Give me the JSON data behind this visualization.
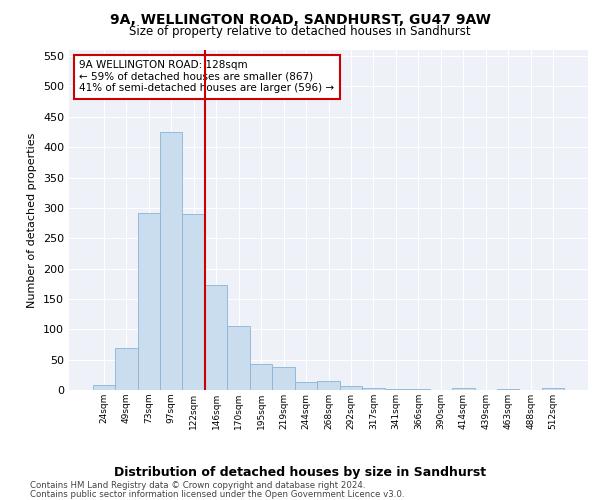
{
  "title1": "9A, WELLINGTON ROAD, SANDHURST, GU47 9AW",
  "title2": "Size of property relative to detached houses in Sandhurst",
  "xlabel": "Distribution of detached houses by size in Sandhurst",
  "ylabel": "Number of detached properties",
  "categories": [
    "24sqm",
    "49sqm",
    "73sqm",
    "97sqm",
    "122sqm",
    "146sqm",
    "170sqm",
    "195sqm",
    "219sqm",
    "244sqm",
    "268sqm",
    "292sqm",
    "317sqm",
    "341sqm",
    "366sqm",
    "390sqm",
    "414sqm",
    "439sqm",
    "463sqm",
    "488sqm",
    "512sqm"
  ],
  "values": [
    8,
    70,
    292,
    425,
    290,
    173,
    105,
    43,
    38,
    14,
    15,
    7,
    4,
    2,
    2,
    0,
    4,
    0,
    2,
    0,
    3
  ],
  "bar_color": "#c9ddef",
  "bar_edge_color": "#8ab4d4",
  "vline_x": 4.5,
  "vline_color": "#cc0000",
  "annotation_line1": "9A WELLINGTON ROAD: 128sqm",
  "annotation_line2": "← 59% of detached houses are smaller (867)",
  "annotation_line3": "41% of semi-detached houses are larger (596) →",
  "annotation_box_color": "#ffffff",
  "annotation_box_edge": "#cc0000",
  "ylim": [
    0,
    560
  ],
  "yticks": [
    0,
    50,
    100,
    150,
    200,
    250,
    300,
    350,
    400,
    450,
    500,
    550
  ],
  "footer1": "Contains HM Land Registry data © Crown copyright and database right 2024.",
  "footer2": "Contains public sector information licensed under the Open Government Licence v3.0.",
  "bg_color": "#ffffff",
  "plot_bg_color": "#eef2f8",
  "grid_color": "#ffffff"
}
